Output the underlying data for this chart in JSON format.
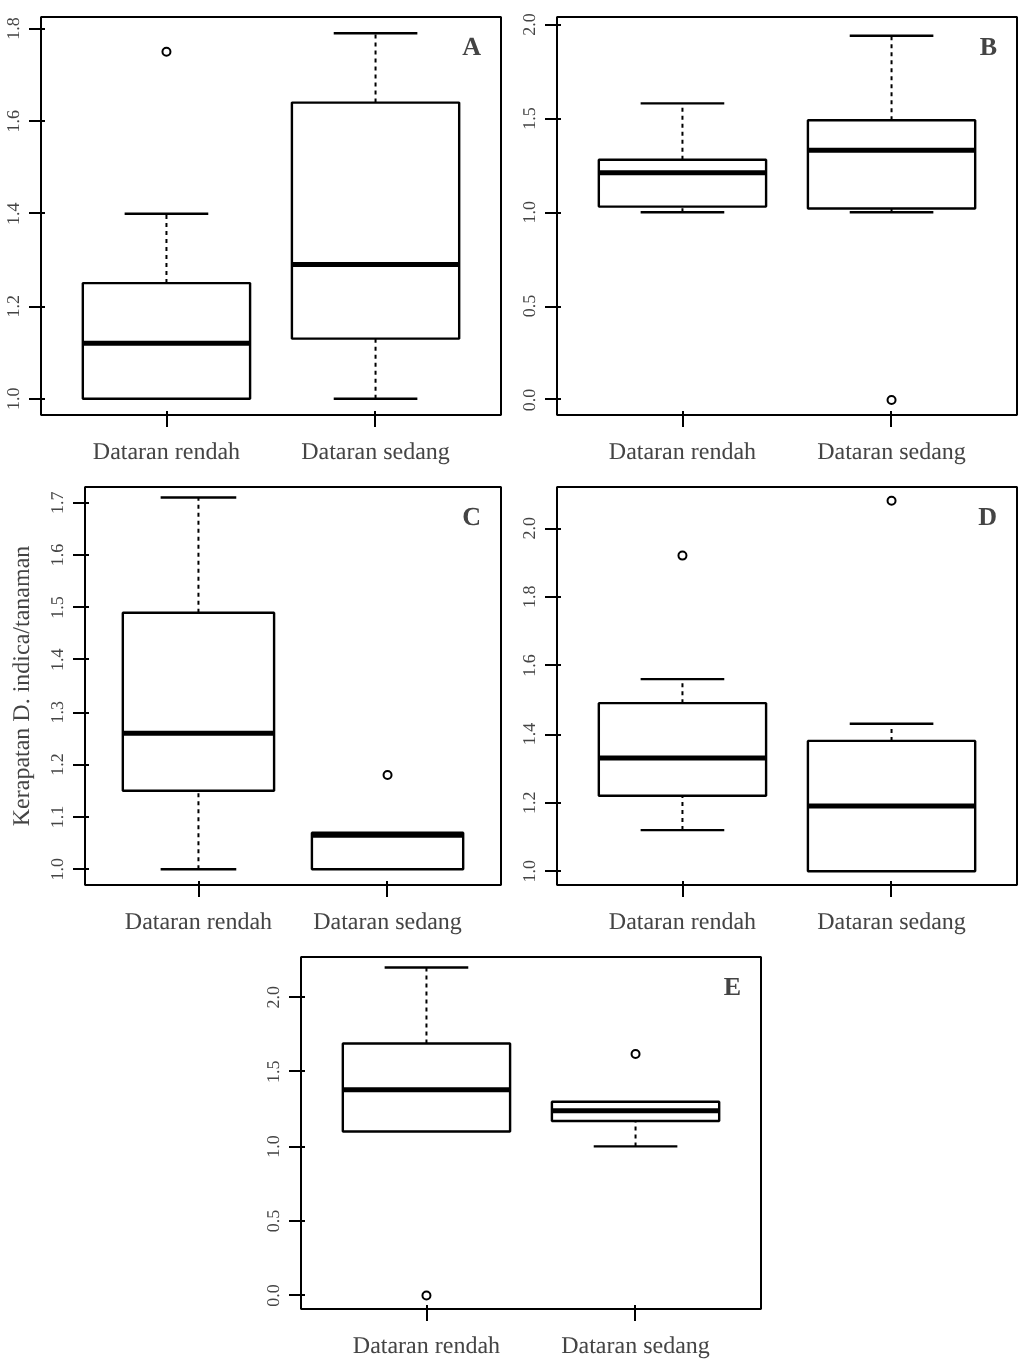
{
  "chart_data": [
    {
      "type": "box",
      "annotations": [
        "A"
      ],
      "categories": [
        "Dataran rendah",
        "Dataran sedang"
      ],
      "ylim": [
        0.965,
        1.825
      ],
      "yticks": [
        {
          "value": 1.0,
          "label": "1.0"
        },
        {
          "value": 1.2,
          "label": "1.2"
        },
        {
          "value": 1.4,
          "label": "1.4"
        },
        {
          "value": 1.6,
          "label": "1.6"
        },
        {
          "value": 1.8,
          "label": "1.8"
        }
      ],
      "boxes": [
        {
          "low": 1.0,
          "q1": 1.0,
          "median": 1.12,
          "q3": 1.25,
          "high": 1.4,
          "outliers": [
            1.75
          ]
        },
        {
          "low": 1.0,
          "q1": 1.13,
          "median": 1.29,
          "q3": 1.64,
          "high": 1.79
        }
      ]
    },
    {
      "type": "box",
      "annotations": [
        "B"
      ],
      "categories": [
        "Dataran rendah",
        "Dataran sedang"
      ],
      "ylim": [
        -0.08,
        2.04
      ],
      "yticks": [
        {
          "value": 0.0,
          "label": "0.0"
        },
        {
          "value": 0.5,
          "label": "0.5"
        },
        {
          "value": 1.0,
          "label": "1.0"
        },
        {
          "value": 1.5,
          "label": "1.5"
        },
        {
          "value": 2.0,
          "label": "2.0"
        }
      ],
      "boxes": [
        {
          "low": 1.0,
          "q1": 1.03,
          "median": 1.21,
          "q3": 1.28,
          "high": 1.58
        },
        {
          "low": 1.0,
          "q1": 1.02,
          "median": 1.33,
          "q3": 1.49,
          "high": 1.94,
          "outliers": [
            0.0
          ]
        }
      ]
    },
    {
      "type": "box",
      "annotations": [
        "C"
      ],
      "ylabel": "Kerapatan D. indica/tanaman",
      "categories": [
        "Dataran rendah",
        "Dataran sedang"
      ],
      "ylim": [
        0.97,
        1.73
      ],
      "yticks": [
        {
          "value": 1.0,
          "label": "1.0"
        },
        {
          "value": 1.1,
          "label": "1.1"
        },
        {
          "value": 1.2,
          "label": "1.2"
        },
        {
          "value": 1.3,
          "label": "1.3"
        },
        {
          "value": 1.4,
          "label": "1.4"
        },
        {
          "value": 1.5,
          "label": "1.5"
        },
        {
          "value": 1.6,
          "label": "1.6"
        },
        {
          "value": 1.7,
          "label": "1.7"
        }
      ],
      "boxes": [
        {
          "low": 1.0,
          "q1": 1.15,
          "median": 1.26,
          "q3": 1.49,
          "high": 1.71
        },
        {
          "low": 1.0,
          "q1": 1.0,
          "median": 1.065,
          "q3": 1.07,
          "high": 1.07,
          "outliers": [
            1.18
          ]
        }
      ]
    },
    {
      "type": "box",
      "annotations": [
        "D"
      ],
      "categories": [
        "Dataran rendah",
        "Dataran sedang"
      ],
      "ylim": [
        0.96,
        2.12
      ],
      "yticks": [
        {
          "value": 1.0,
          "label": "1.0"
        },
        {
          "value": 1.2,
          "label": "1.2"
        },
        {
          "value": 1.4,
          "label": "1.4"
        },
        {
          "value": 1.6,
          "label": "1.6"
        },
        {
          "value": 1.8,
          "label": "1.8"
        },
        {
          "value": 2.0,
          "label": "2.0"
        }
      ],
      "boxes": [
        {
          "low": 1.12,
          "q1": 1.22,
          "median": 1.33,
          "q3": 1.49,
          "high": 1.56,
          "outliers": [
            1.92
          ]
        },
        {
          "low": 1.0,
          "q1": 1.0,
          "median": 1.19,
          "q3": 1.38,
          "high": 1.43,
          "outliers": [
            2.08
          ]
        }
      ]
    },
    {
      "type": "box",
      "annotations": [
        "E"
      ],
      "categories": [
        "Dataran rendah",
        "Dataran sedang"
      ],
      "ylim": [
        -0.09,
        2.27
      ],
      "yticks": [
        {
          "value": 0.0,
          "label": "0.0"
        },
        {
          "value": 0.5,
          "label": "0.5"
        },
        {
          "value": 1.0,
          "label": "1.0"
        },
        {
          "value": 1.5,
          "label": "1.5"
        },
        {
          "value": 2.0,
          "label": "2.0"
        }
      ],
      "boxes": [
        {
          "low": 1.1,
          "q1": 1.1,
          "median": 1.38,
          "q3": 1.69,
          "high": 2.2,
          "outliers": [
            0.0
          ]
        },
        {
          "low": 1.0,
          "q1": 1.17,
          "median": 1.24,
          "q3": 1.3,
          "high": 1.3,
          "outliers": [
            1.62
          ]
        }
      ]
    }
  ]
}
